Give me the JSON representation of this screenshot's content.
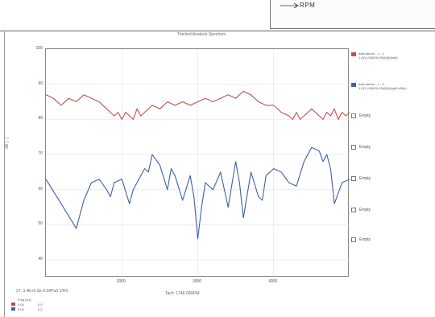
{
  "top_panel": {
    "axis_label": "RPM"
  },
  "chart": {
    "title": "Tracked Analysis Spectrum",
    "y_axis_label": "dB [...]",
    "x_axis_label": "Tach: 1748.00RPM",
    "cursor_info": "27, 3.4E+0 Se-0.00Pa3    1/HS",
    "legend": [
      {
        "label": "data.tatrum - 1 - 1",
        "detail": "1-0(V)-00(00)-00(d)(f)(mg/l)",
        "color": "#c0504d"
      },
      {
        "label": "data.tatrum - 1 - 2",
        "detail": "1-0(Y)-00(00)-00(d)(f)(mg/l)-dB(x)",
        "color": "#3f5fa8"
      }
    ],
    "empty_slots": [
      "Empty",
      "Empty",
      "Empty",
      "Empty",
      "Empty"
    ],
    "bottom_table": {
      "header": "Freq [Hz]",
      "rows": [
        {
          "color": "#c0504d",
          "c1": "0.00",
          "c2": "0.0"
        },
        {
          "color": "#3f5fa8",
          "c1": "0.00",
          "c2": "0.0"
        }
      ]
    }
  },
  "chart_data": {
    "type": "line",
    "title": "Tracked Analysis Spectrum",
    "xlabel": "Tach: 1748.00RPM",
    "ylabel": "",
    "xlim": [
      1000,
      5000
    ],
    "ylim": [
      35,
      100
    ],
    "x_ticks": [
      2000,
      3000,
      4000
    ],
    "y_ticks": [
      40,
      50,
      60,
      70,
      80,
      90,
      100
    ],
    "grid": true,
    "series": [
      {
        "name": "data.tatrum - 1 - 1",
        "color": "#c0504d",
        "x": [
          1000,
          1100,
          1200,
          1300,
          1400,
          1500,
          1600,
          1700,
          1800,
          1850,
          1900,
          1950,
          2000,
          2050,
          2100,
          2150,
          2200,
          2250,
          2300,
          2400,
          2500,
          2600,
          2700,
          2800,
          2900,
          3000,
          3100,
          3200,
          3300,
          3400,
          3500,
          3600,
          3700,
          3750,
          3800,
          3900,
          4000,
          4100,
          4200,
          4250,
          4300,
          4350,
          4400,
          4500,
          4600,
          4650,
          4700,
          4750,
          4800,
          4850,
          4900,
          4950,
          5000
        ],
        "y": [
          87,
          86,
          84,
          86,
          85,
          87,
          86,
          85,
          83,
          82,
          81,
          82,
          80,
          82,
          81,
          80,
          83,
          81,
          82,
          84,
          83,
          85,
          84,
          85,
          84,
          85,
          86,
          85,
          86,
          87,
          86,
          88,
          87,
          86,
          85,
          84,
          84,
          82,
          81,
          80,
          82,
          80,
          81,
          83,
          81,
          80,
          82,
          81,
          83,
          80,
          82,
          81,
          82
        ]
      },
      {
        "name": "data.tatrum - 1 - 2",
        "color": "#3f5fa8",
        "x": [
          1000,
          1200,
          1400,
          1500,
          1600,
          1700,
          1800,
          1850,
          1900,
          2000,
          2100,
          2150,
          2200,
          2300,
          2350,
          2400,
          2500,
          2600,
          2650,
          2700,
          2800,
          2900,
          2950,
          3000,
          3050,
          3100,
          3200,
          3300,
          3400,
          3500,
          3550,
          3600,
          3700,
          3800,
          3850,
          3900,
          4000,
          4100,
          4200,
          4300,
          4400,
          4500,
          4600,
          4650,
          4700,
          4750,
          4800,
          4900,
          5000
        ],
        "y": [
          63,
          56,
          49,
          57,
          62,
          63,
          60,
          58,
          62,
          63,
          56,
          60,
          62,
          66,
          65,
          70,
          67,
          60,
          66,
          64,
          57,
          64,
          58,
          46,
          55,
          62,
          60,
          65,
          55,
          68,
          62,
          52,
          65,
          58,
          57,
          64,
          66,
          65,
          62,
          61,
          68,
          72,
          71,
          68,
          70,
          66,
          56,
          62,
          63
        ]
      }
    ]
  }
}
